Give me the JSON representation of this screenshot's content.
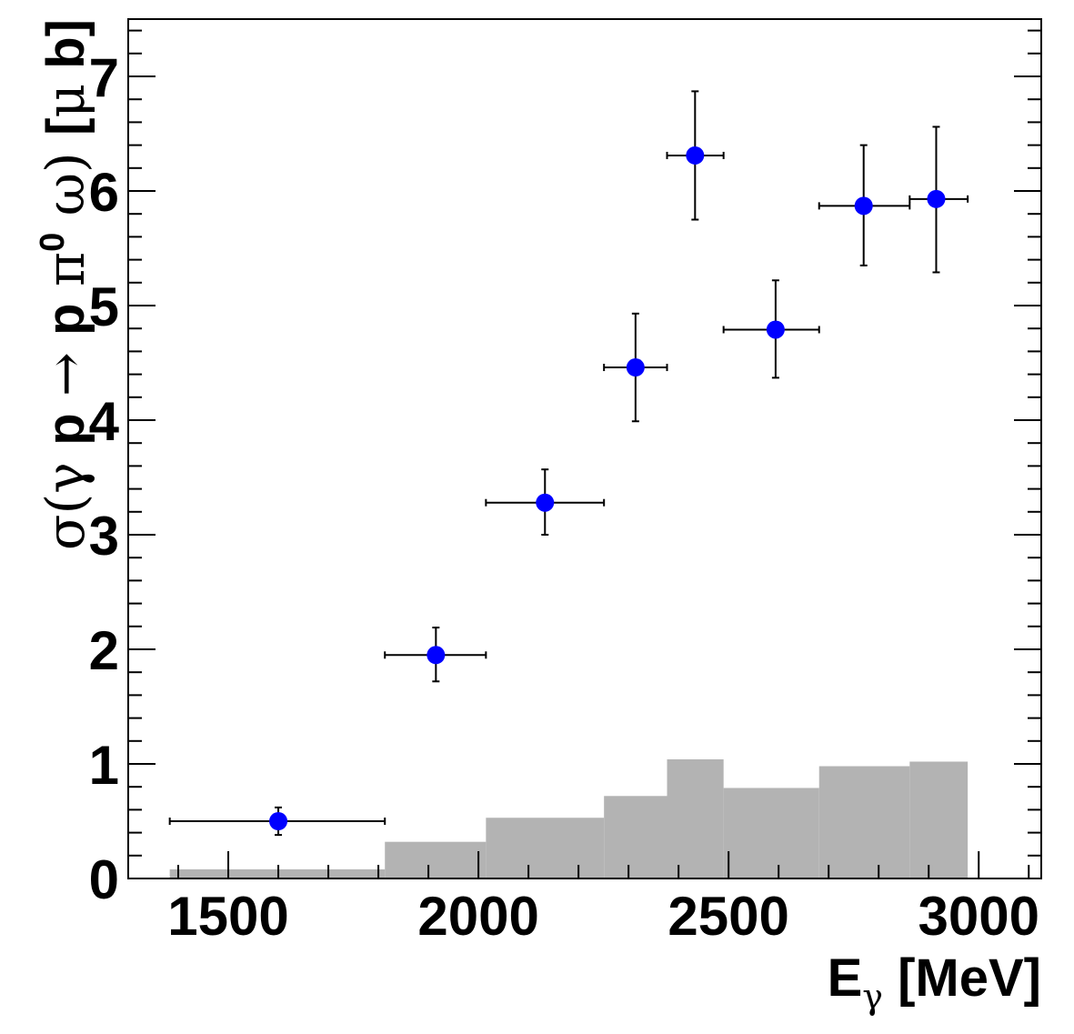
{
  "chart_data": {
    "type": "scatter",
    "x_label": {
      "main": "E",
      "sub": "γ",
      "rest": " [MeV]"
    },
    "y_label": {
      "parts": [
        {
          "t": "σ(γ ",
          "style": "sym"
        },
        {
          "t": "p",
          "style": "bold"
        },
        {
          "t": " → ",
          "style": "sym"
        },
        {
          "t": "p",
          "style": "bold"
        },
        {
          "t": " π",
          "style": "sym"
        },
        {
          "t": "0",
          "style": "sup"
        },
        {
          "t": " ω) ",
          "style": "sym"
        },
        {
          "t": "[",
          "style": "bold"
        },
        {
          "t": "μ",
          "style": "sym"
        },
        {
          "t": " b]",
          "style": "bold"
        }
      ]
    },
    "xlim": [
      1300,
      3125
    ],
    "ylim": [
      0,
      7.5
    ],
    "x_ticks": [
      1500,
      2000,
      2500,
      3000
    ],
    "y_ticks": [
      0,
      1,
      2,
      3,
      4,
      5,
      6,
      7
    ],
    "marker_color": "#0000ff",
    "systematic_color": "#b3b3b3",
    "points": [
      {
        "x": 1600,
        "y": 0.5,
        "xerr": [
          1383,
          1813
        ],
        "yerr": [
          0.38,
          0.62
        ]
      },
      {
        "x": 1915,
        "y": 1.95,
        "xerr": [
          1813,
          2015
        ],
        "yerr": [
          1.72,
          2.19
        ]
      },
      {
        "x": 2133,
        "y": 3.28,
        "xerr": [
          2015,
          2251
        ],
        "yerr": [
          3.0,
          3.57
        ]
      },
      {
        "x": 2314,
        "y": 4.46,
        "xerr": [
          2251,
          2377
        ],
        "yerr": [
          3.99,
          4.93
        ]
      },
      {
        "x": 2433,
        "y": 6.31,
        "xerr": [
          2377,
          2490
        ],
        "yerr": [
          5.75,
          6.87
        ]
      },
      {
        "x": 2594,
        "y": 4.79,
        "xerr": [
          2490,
          2681
        ],
        "yerr": [
          4.37,
          5.22
        ]
      },
      {
        "x": 2770,
        "y": 5.87,
        "xerr": [
          2681,
          2862
        ],
        "yerr": [
          5.35,
          6.4
        ]
      },
      {
        "x": 2915,
        "y": 5.93,
        "xerr": [
          2862,
          2978
        ],
        "yerr": [
          5.29,
          6.56
        ]
      }
    ],
    "systematic_bins": [
      {
        "x0": 1383,
        "x1": 1813,
        "y": 0.08
      },
      {
        "x0": 1813,
        "x1": 2015,
        "y": 0.32
      },
      {
        "x0": 2015,
        "x1": 2251,
        "y": 0.53
      },
      {
        "x0": 2251,
        "x1": 2377,
        "y": 0.72
      },
      {
        "x0": 2377,
        "x1": 2490,
        "y": 1.04
      },
      {
        "x0": 2490,
        "x1": 2681,
        "y": 0.79
      },
      {
        "x0": 2681,
        "x1": 2862,
        "y": 0.98
      },
      {
        "x0": 2862,
        "x1": 2978,
        "y": 1.02
      }
    ]
  }
}
